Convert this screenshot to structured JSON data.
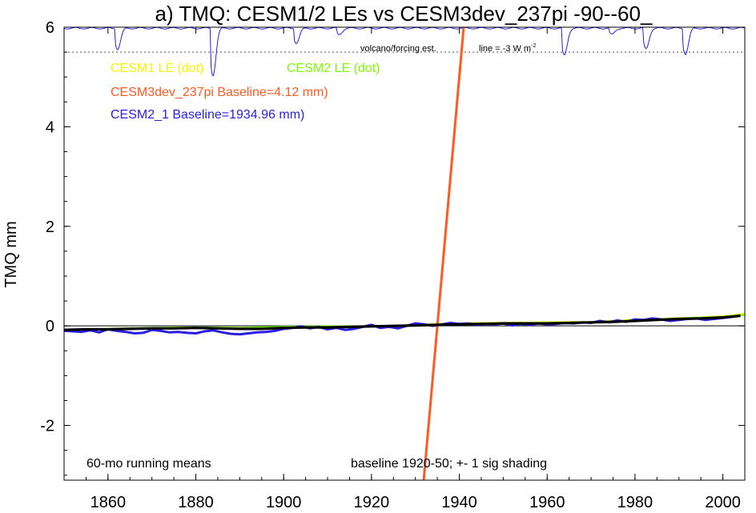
{
  "chart_data": {
    "type": "line",
    "title": "a) TMQ: CESM1/2 LEs vs CESM3dev_237pi -90--60_",
    "xlabel": "",
    "ylabel": "TMQ mm",
    "xlim": [
      1850,
      2005
    ],
    "ylim": [
      -3.1,
      6.0
    ],
    "x_ticks": [
      1860,
      1880,
      1900,
      1920,
      1940,
      1960,
      1980,
      2000
    ],
    "y_ticks": [
      -2,
      0,
      2,
      4,
      6
    ],
    "x_tick_labels": [
      "1860",
      "1880",
      "1900",
      "1920",
      "1940",
      "1960",
      "1980",
      "2000"
    ],
    "y_tick_labels": [
      "-2",
      "0",
      "2",
      "4",
      "6"
    ],
    "legend": [
      {
        "text": "CESM1 LE (dot)",
        "color": "#f5f500"
      },
      {
        "text": "CESM2 LE (dot)",
        "color": "#7cfc00"
      },
      {
        "text": "CESM3dev_237pi Baseline=4.12 mm)",
        "color": "#ff5a1f"
      },
      {
        "text": "CESM2_1 Baseline=1934.96 mm)",
        "color": "#2a1ee0"
      }
    ],
    "annotations": {
      "volcano": "volcano/forcing est.",
      "line_label": "line = -3 W m",
      "line_sup": "-2",
      "running": "60-mo running means",
      "baseline": "baseline 1920-50; +- 1 sig shading"
    },
    "reference_line_y": 5.5,
    "zero_line_y": 0,
    "volcano_baseline_y": 6.0,
    "volcano_events": [
      {
        "year": 1862.3,
        "depth": 0.42
      },
      {
        "year": 1884.0,
        "depth": 0.95
      },
      {
        "year": 1903.0,
        "depth": 0.3
      },
      {
        "year": 1912.7,
        "depth": 0.13
      },
      {
        "year": 1964.0,
        "depth": 0.55
      },
      {
        "year": 1974.8,
        "depth": 0.13
      },
      {
        "year": 1982.6,
        "depth": 0.42
      },
      {
        "year": 1991.6,
        "depth": 0.52
      }
    ],
    "series": [
      {
        "name": "CESM1 LE (dot)",
        "color": "#f5f500",
        "x": [
          1920,
          1930,
          1940,
          1950,
          1960,
          1970,
          1980,
          1990,
          2000,
          2005
        ],
        "y": [
          -0.02,
          0.02,
          0.05,
          0.06,
          0.07,
          0.08,
          0.12,
          0.15,
          0.19,
          0.24
        ]
      },
      {
        "name": "CESM2 LE (dot)",
        "color": "#7cfc00",
        "x": [
          1850,
          1860,
          1870,
          1880,
          1890,
          1900,
          1910,
          1920,
          1930,
          1940,
          1950,
          1960,
          1970,
          1980,
          1990,
          2000,
          2005
        ],
        "y": [
          -0.08,
          -0.06,
          -0.04,
          -0.03,
          -0.04,
          -0.02,
          -0.01,
          -0.01,
          0.01,
          0.04,
          0.05,
          0.06,
          0.07,
          0.11,
          0.15,
          0.18,
          0.22
        ]
      },
      {
        "name": "CESM3dev_237pi Baseline=4.12 mm)",
        "color": "#ff5a1f",
        "x": [
          1931.9,
          1941.0
        ],
        "y": [
          -3.1,
          6.0
        ]
      },
      {
        "name": "CESM2_1 Baseline=1934.96 mm)",
        "color": "#2a1ee0",
        "x": [
          1850,
          1852,
          1854,
          1856,
          1858,
          1860,
          1862,
          1864,
          1866,
          1868,
          1870,
          1872,
          1874,
          1876,
          1878,
          1880,
          1882,
          1884,
          1886,
          1888,
          1890,
          1892,
          1894,
          1896,
          1898,
          1900,
          1902,
          1904,
          1906,
          1908,
          1910,
          1912,
          1914,
          1916,
          1918,
          1920,
          1922,
          1924,
          1926,
          1928,
          1930,
          1932,
          1934,
          1936,
          1938,
          1940,
          1942,
          1944,
          1946,
          1948,
          1950,
          1952,
          1954,
          1956,
          1958,
          1960,
          1962,
          1964,
          1966,
          1968,
          1970,
          1972,
          1974,
          1976,
          1978,
          1980,
          1982,
          1984,
          1986,
          1988,
          1990,
          1992,
          1994,
          1996,
          1998,
          2000,
          2002,
          2004
        ],
        "y": [
          -0.1,
          -0.11,
          -0.12,
          -0.09,
          -0.13,
          -0.07,
          -0.1,
          -0.12,
          -0.15,
          -0.14,
          -0.08,
          -0.1,
          -0.13,
          -0.12,
          -0.14,
          -0.15,
          -0.11,
          -0.09,
          -0.13,
          -0.16,
          -0.17,
          -0.15,
          -0.13,
          -0.12,
          -0.1,
          -0.06,
          -0.04,
          -0.01,
          -0.05,
          -0.02,
          -0.07,
          -0.04,
          -0.08,
          -0.06,
          -0.02,
          0.02,
          -0.04,
          -0.02,
          -0.05,
          0.0,
          0.05,
          0.03,
          0.0,
          0.03,
          0.06,
          0.04,
          0.05,
          0.02,
          0.04,
          0.03,
          0.05,
          0.01,
          0.04,
          0.02,
          0.05,
          0.03,
          0.04,
          0.06,
          0.05,
          0.07,
          0.06,
          0.1,
          0.07,
          0.11,
          0.08,
          0.13,
          0.12,
          0.15,
          0.13,
          0.1,
          0.12,
          0.14,
          0.15,
          0.12,
          0.14,
          0.16,
          0.18,
          0.21
        ]
      },
      {
        "name": "",
        "color": "#000000",
        "x": [
          1850,
          1855,
          1860,
          1865,
          1870,
          1875,
          1880,
          1885,
          1890,
          1895,
          1900,
          1905,
          1910,
          1915,
          1920,
          1925,
          1930,
          1935,
          1940,
          1945,
          1950,
          1955,
          1960,
          1965,
          1970,
          1975,
          1980,
          1985,
          1990,
          1995,
          2000,
          2004
        ],
        "y": [
          -0.08,
          -0.07,
          -0.07,
          -0.06,
          -0.05,
          -0.05,
          -0.04,
          -0.05,
          -0.06,
          -0.06,
          -0.04,
          -0.03,
          -0.03,
          -0.02,
          -0.01,
          0.0,
          0.01,
          0.02,
          0.03,
          0.04,
          0.05,
          0.05,
          0.05,
          0.06,
          0.07,
          0.08,
          0.1,
          0.12,
          0.14,
          0.15,
          0.17,
          0.2
        ]
      }
    ]
  }
}
